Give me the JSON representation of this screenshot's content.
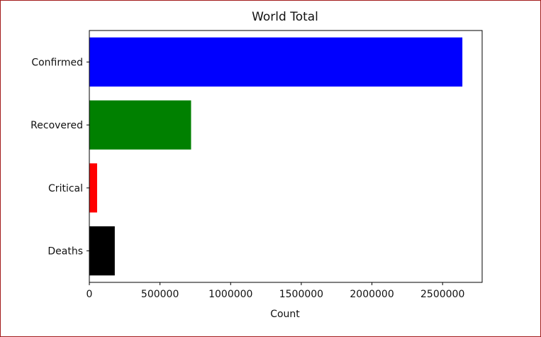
{
  "chart_data": {
    "type": "bar",
    "orientation": "horizontal",
    "title": "World Total",
    "xlabel": "Count",
    "ylabel": "",
    "categories": [
      "Confirmed",
      "Recovered",
      "Critical",
      "Deaths"
    ],
    "values": [
      2640000,
      720000,
      55000,
      180000
    ],
    "colors": [
      "#0000ff",
      "#008000",
      "#ff0000",
      "#000000"
    ],
    "xlim": [
      0,
      2780000
    ],
    "xticks": [
      0,
      500000,
      1000000,
      1500000,
      2000000,
      2500000
    ],
    "xtick_labels": [
      "0",
      "500000",
      "1000000",
      "1500000",
      "2000000",
      "2500000"
    ],
    "grid": false,
    "legend": "none"
  }
}
